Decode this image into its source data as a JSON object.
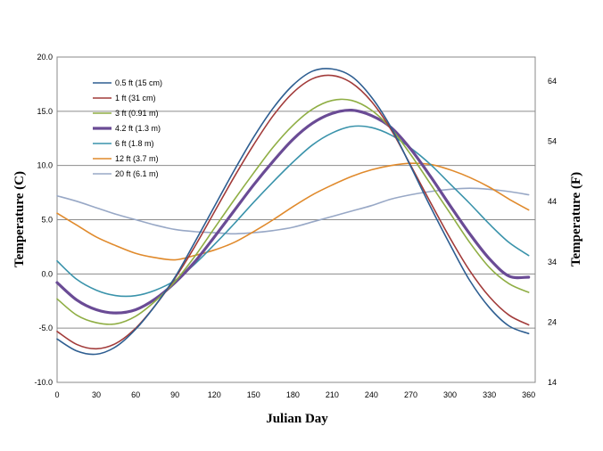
{
  "chart_data": {
    "type": "line",
    "xlabel": "Julian Day",
    "ylabel": "Temperature (C)",
    "ylabel_right": "Temperature (F)",
    "xlim": [
      0,
      365
    ],
    "ylim": [
      -10,
      20
    ],
    "ylim_right": [
      14,
      68
    ],
    "x_ticks": [
      0,
      30,
      60,
      90,
      120,
      150,
      180,
      210,
      240,
      270,
      300,
      330,
      360
    ],
    "y_ticks": [
      -10,
      -5,
      0,
      5,
      10,
      15,
      20
    ],
    "y_tick_labels": [
      "-10.0",
      "-5.0",
      "0.0",
      "5.0",
      "10.0",
      "15.0",
      "20.0"
    ],
    "y_right_ticks": [
      14,
      24,
      34,
      44,
      54,
      64
    ],
    "grid": "horizontal",
    "legend_position": "top-left",
    "series": [
      {
        "name": "0.5 ft (15 cm)",
        "color": "#2e5e91",
        "width": 1.6,
        "x": [
          0,
          15,
          30,
          45,
          60,
          75,
          90,
          105,
          120,
          135,
          150,
          165,
          180,
          195,
          210,
          225,
          240,
          255,
          270,
          285,
          300,
          315,
          330,
          345,
          360
        ],
        "y": [
          -6.0,
          -7.1,
          -7.4,
          -6.7,
          -5.1,
          -2.9,
          -0.3,
          2.9,
          6.2,
          9.5,
          12.6,
          15.3,
          17.4,
          18.7,
          18.9,
          18.2,
          16.3,
          13.5,
          9.9,
          6.2,
          2.7,
          -0.6,
          -3.1,
          -4.8,
          -5.5
        ]
      },
      {
        "name": "1 ft (31 cm)",
        "color": "#a23b3a",
        "width": 1.6,
        "x": [
          0,
          15,
          30,
          45,
          60,
          75,
          90,
          105,
          120,
          135,
          150,
          165,
          180,
          195,
          210,
          225,
          240,
          255,
          270,
          285,
          300,
          315,
          330,
          345,
          360
        ],
        "y": [
          -5.3,
          -6.5,
          -6.9,
          -6.4,
          -5.0,
          -2.9,
          -0.4,
          2.5,
          5.7,
          8.9,
          11.9,
          14.6,
          16.7,
          18.0,
          18.3,
          17.6,
          15.9,
          13.3,
          10.0,
          6.6,
          3.3,
          0.3,
          -2.1,
          -3.8,
          -4.7
        ]
      },
      {
        "name": "3 ft (0.91 m)",
        "color": "#8fae44",
        "width": 1.6,
        "x": [
          0,
          15,
          30,
          45,
          60,
          75,
          90,
          105,
          120,
          135,
          150,
          165,
          180,
          195,
          210,
          225,
          240,
          255,
          270,
          285,
          300,
          315,
          330,
          345,
          360
        ],
        "y": [
          -2.3,
          -3.8,
          -4.5,
          -4.6,
          -3.9,
          -2.5,
          -0.7,
          1.6,
          4.2,
          6.8,
          9.3,
          11.7,
          13.7,
          15.2,
          16.0,
          16.0,
          15.1,
          13.4,
          11.0,
          8.3,
          5.6,
          2.9,
          0.6,
          -0.9,
          -1.7
        ]
      },
      {
        "name": "4.2 ft (1.3 m)",
        "color": "#6a4b95",
        "width": 3.2,
        "x": [
          0,
          15,
          30,
          45,
          60,
          75,
          90,
          105,
          120,
          135,
          150,
          165,
          180,
          195,
          210,
          225,
          240,
          255,
          270,
          285,
          300,
          315,
          330,
          345,
          360
        ],
        "y": [
          -0.8,
          -2.4,
          -3.3,
          -3.6,
          -3.3,
          -2.3,
          -0.8,
          1.1,
          3.4,
          5.8,
          8.2,
          10.4,
          12.4,
          13.9,
          14.8,
          15.1,
          14.6,
          13.5,
          11.5,
          9.0,
          6.3,
          3.7,
          1.4,
          -0.2,
          -0.3
        ]
      },
      {
        "name": "6 ft (1.8 m)",
        "color": "#3a93ab",
        "width": 1.6,
        "x": [
          0,
          15,
          30,
          45,
          60,
          75,
          90,
          105,
          120,
          135,
          150,
          165,
          180,
          195,
          210,
          225,
          240,
          255,
          270,
          285,
          300,
          315,
          330,
          345,
          360
        ],
        "y": [
          1.2,
          -0.5,
          -1.5,
          -2.0,
          -2.0,
          -1.5,
          -0.6,
          0.9,
          2.7,
          4.6,
          6.6,
          8.5,
          10.3,
          11.9,
          13.0,
          13.6,
          13.5,
          12.8,
          11.6,
          10.1,
          8.3,
          6.5,
          4.6,
          2.9,
          1.7
        ]
      },
      {
        "name": "12 ft (3.7 m)",
        "color": "#e08a2c",
        "width": 1.6,
        "x": [
          0,
          15,
          30,
          45,
          60,
          75,
          90,
          105,
          120,
          135,
          150,
          165,
          180,
          195,
          210,
          225,
          240,
          255,
          270,
          285,
          300,
          315,
          330,
          345,
          360
        ],
        "y": [
          5.6,
          4.5,
          3.4,
          2.6,
          1.9,
          1.5,
          1.3,
          1.7,
          2.2,
          2.9,
          3.9,
          5.0,
          6.2,
          7.3,
          8.2,
          9.0,
          9.6,
          10.0,
          10.2,
          10.1,
          9.6,
          8.9,
          8.0,
          6.9,
          5.9
        ]
      },
      {
        "name": "20 ft (6.1 m)",
        "color": "#98a8c6",
        "width": 1.6,
        "x": [
          0,
          15,
          30,
          45,
          60,
          75,
          90,
          105,
          120,
          135,
          150,
          165,
          180,
          195,
          210,
          225,
          240,
          255,
          270,
          285,
          300,
          315,
          330,
          345,
          360
        ],
        "y": [
          7.2,
          6.7,
          6.1,
          5.5,
          5.0,
          4.5,
          4.1,
          3.9,
          3.8,
          3.7,
          3.8,
          4.0,
          4.3,
          4.8,
          5.3,
          5.8,
          6.3,
          6.9,
          7.3,
          7.6,
          7.8,
          7.9,
          7.8,
          7.6,
          7.3
        ]
      }
    ]
  }
}
